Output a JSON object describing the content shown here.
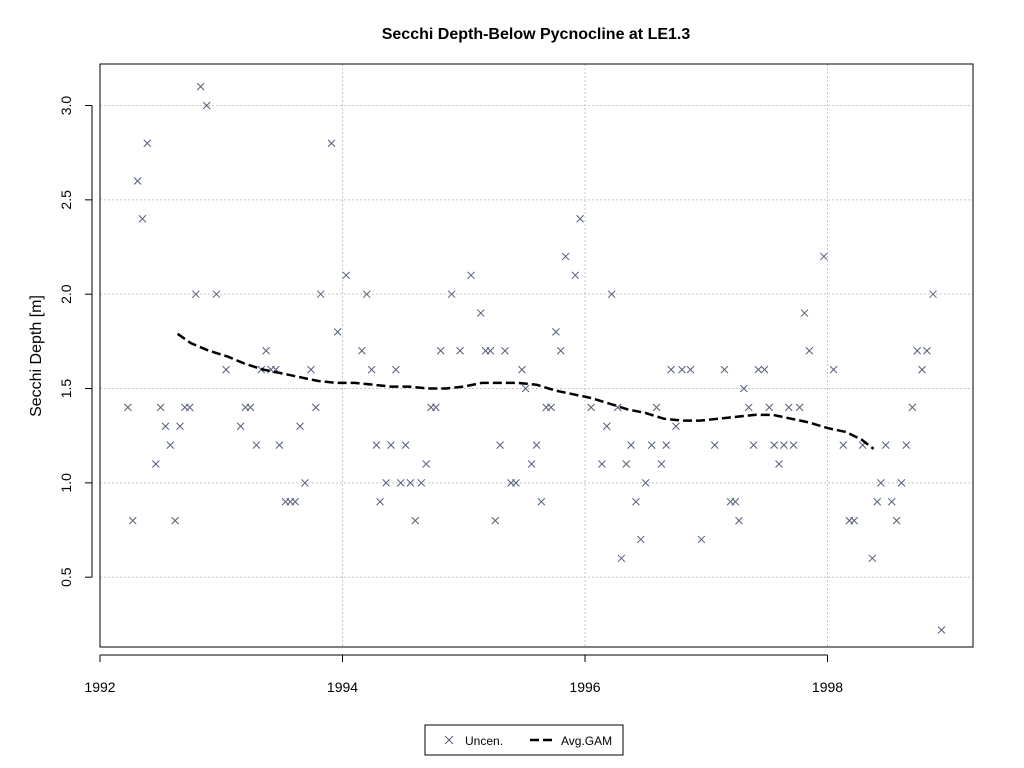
{
  "chart_data": {
    "type": "scatter",
    "title": "Secchi Depth-Below Pycnocline at LE1.3",
    "xlabel": "",
    "ylabel": "Secchi Depth [m]",
    "xlim": [
      1992.0,
      1999.2
    ],
    "ylim": [
      0.13,
      3.22
    ],
    "x_ticks": [
      1992,
      1994,
      1996,
      1998
    ],
    "y_ticks": [
      0.5,
      1.0,
      1.5,
      2.0,
      2.5,
      3.0
    ],
    "grid": true,
    "legend_position": "bottom",
    "colors": {
      "points": "#55607a",
      "gam": "#000000",
      "grid": "#c8c8c8"
    },
    "legend": [
      {
        "label": "Uncen.",
        "marker": "x"
      },
      {
        "label": "Avg.GAM",
        "line": "dashed"
      }
    ],
    "series": [
      {
        "name": "Uncen.",
        "type": "scatter",
        "points": [
          [
            1992.23,
            1.4
          ],
          [
            1992.27,
            0.8
          ],
          [
            1992.31,
            2.6
          ],
          [
            1992.35,
            2.4
          ],
          [
            1992.39,
            2.8
          ],
          [
            1992.46,
            1.1
          ],
          [
            1992.5,
            1.4
          ],
          [
            1992.54,
            1.3
          ],
          [
            1992.58,
            1.2
          ],
          [
            1992.62,
            0.8
          ],
          [
            1992.66,
            1.3
          ],
          [
            1992.7,
            1.4
          ],
          [
            1992.74,
            1.4
          ],
          [
            1992.79,
            2.0
          ],
          [
            1992.83,
            3.1
          ],
          [
            1992.88,
            3.0
          ],
          [
            1992.96,
            2.0
          ],
          [
            1993.04,
            1.6
          ],
          [
            1993.16,
            1.3
          ],
          [
            1993.2,
            1.4
          ],
          [
            1993.24,
            1.4
          ],
          [
            1993.29,
            1.2
          ],
          [
            1993.33,
            1.6
          ],
          [
            1993.37,
            1.7
          ],
          [
            1993.41,
            1.6
          ],
          [
            1993.45,
            1.6
          ],
          [
            1993.48,
            1.2
          ],
          [
            1993.53,
            0.9
          ],
          [
            1993.57,
            0.9
          ],
          [
            1993.61,
            0.9
          ],
          [
            1993.65,
            1.3
          ],
          [
            1993.69,
            1.0
          ],
          [
            1993.74,
            1.6
          ],
          [
            1993.78,
            1.4
          ],
          [
            1993.82,
            2.0
          ],
          [
            1993.91,
            2.8
          ],
          [
            1993.96,
            1.8
          ],
          [
            1994.03,
            2.1
          ],
          [
            1994.16,
            1.7
          ],
          [
            1994.2,
            2.0
          ],
          [
            1994.24,
            1.6
          ],
          [
            1994.28,
            1.2
          ],
          [
            1994.31,
            0.9
          ],
          [
            1994.36,
            1.0
          ],
          [
            1994.4,
            1.2
          ],
          [
            1994.44,
            1.6
          ],
          [
            1994.48,
            1.0
          ],
          [
            1994.52,
            1.2
          ],
          [
            1994.56,
            1.0
          ],
          [
            1994.6,
            0.8
          ],
          [
            1994.65,
            1.0
          ],
          [
            1994.69,
            1.1
          ],
          [
            1994.73,
            1.4
          ],
          [
            1994.77,
            1.4
          ],
          [
            1994.81,
            1.7
          ],
          [
            1994.9,
            2.0
          ],
          [
            1994.97,
            1.7
          ],
          [
            1995.06,
            2.1
          ],
          [
            1995.14,
            1.9
          ],
          [
            1995.18,
            1.7
          ],
          [
            1995.22,
            1.7
          ],
          [
            1995.26,
            0.8
          ],
          [
            1995.3,
            1.2
          ],
          [
            1995.34,
            1.7
          ],
          [
            1995.39,
            1.0
          ],
          [
            1995.43,
            1.0
          ],
          [
            1995.48,
            1.6
          ],
          [
            1995.51,
            1.5
          ],
          [
            1995.56,
            1.1
          ],
          [
            1995.6,
            1.2
          ],
          [
            1995.64,
            0.9
          ],
          [
            1995.68,
            1.4
          ],
          [
            1995.72,
            1.4
          ],
          [
            1995.76,
            1.8
          ],
          [
            1995.8,
            1.7
          ],
          [
            1995.84,
            2.2
          ],
          [
            1995.92,
            2.1
          ],
          [
            1995.96,
            2.4
          ],
          [
            1996.05,
            1.4
          ],
          [
            1996.14,
            1.1
          ],
          [
            1996.18,
            1.3
          ],
          [
            1996.22,
            2.0
          ],
          [
            1996.27,
            1.4
          ],
          [
            1996.3,
            0.6
          ],
          [
            1996.34,
            1.1
          ],
          [
            1996.38,
            1.2
          ],
          [
            1996.42,
            0.9
          ],
          [
            1996.46,
            0.7
          ],
          [
            1996.5,
            1.0
          ],
          [
            1996.55,
            1.2
          ],
          [
            1996.59,
            1.4
          ],
          [
            1996.63,
            1.1
          ],
          [
            1996.67,
            1.2
          ],
          [
            1996.71,
            1.6
          ],
          [
            1996.75,
            1.3
          ],
          [
            1996.8,
            1.6
          ],
          [
            1996.87,
            1.6
          ],
          [
            1996.96,
            0.7
          ],
          [
            1997.07,
            1.2
          ],
          [
            1997.15,
            1.6
          ],
          [
            1997.2,
            0.9
          ],
          [
            1997.24,
            0.9
          ],
          [
            1997.27,
            0.8
          ],
          [
            1997.31,
            1.5
          ],
          [
            1997.35,
            1.4
          ],
          [
            1997.39,
            1.2
          ],
          [
            1997.43,
            1.6
          ],
          [
            1997.48,
            1.6
          ],
          [
            1997.52,
            1.4
          ],
          [
            1997.56,
            1.2
          ],
          [
            1997.6,
            1.1
          ],
          [
            1997.64,
            1.2
          ],
          [
            1997.68,
            1.4
          ],
          [
            1997.72,
            1.2
          ],
          [
            1997.77,
            1.4
          ],
          [
            1997.81,
            1.9
          ],
          [
            1997.85,
            1.7
          ],
          [
            1997.97,
            2.2
          ],
          [
            1998.05,
            1.6
          ],
          [
            1998.13,
            1.2
          ],
          [
            1998.18,
            0.8
          ],
          [
            1998.22,
            0.8
          ],
          [
            1998.29,
            1.2
          ],
          [
            1998.37,
            0.6
          ],
          [
            1998.41,
            0.9
          ],
          [
            1998.44,
            1.0
          ],
          [
            1998.48,
            1.2
          ],
          [
            1998.53,
            0.9
          ],
          [
            1998.57,
            0.8
          ],
          [
            1998.61,
            1.0
          ],
          [
            1998.65,
            1.2
          ],
          [
            1998.7,
            1.4
          ],
          [
            1998.74,
            1.7
          ],
          [
            1998.78,
            1.6
          ],
          [
            1998.82,
            1.7
          ],
          [
            1998.87,
            2.0
          ],
          [
            1998.94,
            0.22
          ]
        ]
      },
      {
        "name": "Avg.GAM",
        "type": "line",
        "points": [
          [
            1992.64,
            1.79
          ],
          [
            1992.75,
            1.74
          ],
          [
            1992.9,
            1.7
          ],
          [
            1993.05,
            1.67
          ],
          [
            1993.2,
            1.63
          ],
          [
            1993.35,
            1.6
          ],
          [
            1993.5,
            1.58
          ],
          [
            1993.65,
            1.56
          ],
          [
            1993.8,
            1.54
          ],
          [
            1993.95,
            1.53
          ],
          [
            1994.1,
            1.53
          ],
          [
            1994.25,
            1.52
          ],
          [
            1994.4,
            1.51
          ],
          [
            1994.55,
            1.51
          ],
          [
            1994.7,
            1.5
          ],
          [
            1994.85,
            1.5
          ],
          [
            1995.0,
            1.51
          ],
          [
            1995.15,
            1.53
          ],
          [
            1995.3,
            1.53
          ],
          [
            1995.45,
            1.53
          ],
          [
            1995.6,
            1.52
          ],
          [
            1995.75,
            1.49
          ],
          [
            1995.9,
            1.47
          ],
          [
            1996.05,
            1.45
          ],
          [
            1996.2,
            1.42
          ],
          [
            1996.35,
            1.39
          ],
          [
            1996.5,
            1.37
          ],
          [
            1996.65,
            1.34
          ],
          [
            1996.8,
            1.33
          ],
          [
            1996.95,
            1.33
          ],
          [
            1997.1,
            1.34
          ],
          [
            1997.25,
            1.35
          ],
          [
            1997.4,
            1.36
          ],
          [
            1997.55,
            1.36
          ],
          [
            1997.7,
            1.34
          ],
          [
            1997.85,
            1.32
          ],
          [
            1998.0,
            1.29
          ],
          [
            1998.15,
            1.27
          ],
          [
            1998.28,
            1.23
          ],
          [
            1998.38,
            1.18
          ]
        ]
      }
    ]
  }
}
